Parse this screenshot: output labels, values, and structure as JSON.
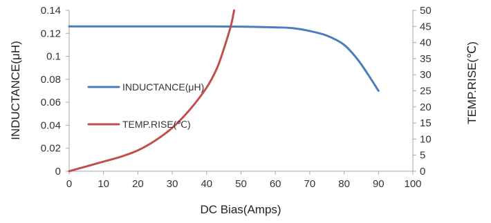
{
  "chart_data": {
    "type": "line",
    "xlabel": "DC Bias(Amps)",
    "ylabel_left": "INDUCTANCE(μH)",
    "ylabel_right": "TEMP.RISE(℃)",
    "xlim": [
      0,
      100
    ],
    "x_ticks": [
      "0",
      "10",
      "20",
      "30",
      "40",
      "50",
      "60",
      "70",
      "80",
      "90",
      "100"
    ],
    "ylim_left": [
      0,
      0.14
    ],
    "y_ticks_left": [
      "0",
      "0.02",
      "0.04",
      "0.06",
      "0.08",
      "0.1",
      "0.12",
      "0.14"
    ],
    "ylim_right": [
      0,
      50
    ],
    "y_ticks_right": [
      "0",
      "5",
      "10",
      "15",
      "20",
      "25",
      "30",
      "35",
      "40",
      "45",
      "50"
    ],
    "grid": false,
    "legend_position": "left-middle",
    "series": [
      {
        "name": "INDUCTANCE(μH)",
        "axis": "left",
        "color": "#4a7ebb",
        "x": [
          0,
          10,
          20,
          30,
          40,
          50,
          60,
          65,
          70,
          75,
          80,
          84,
          87,
          90
        ],
        "y": [
          0.126,
          0.126,
          0.126,
          0.126,
          0.126,
          0.1258,
          0.1252,
          0.1245,
          0.122,
          0.118,
          0.11,
          0.097,
          0.084,
          0.07
        ]
      },
      {
        "name": "TEMP.RISE(℃)",
        "axis": "right",
        "color": "#c0504d",
        "x": [
          0,
          5,
          10,
          15,
          20,
          25,
          30,
          35,
          40,
          43,
          45,
          47,
          48
        ],
        "y": [
          0,
          1.5,
          3,
          4.5,
          6.5,
          9.5,
          13.5,
          19,
          26,
          32,
          38,
          45,
          50
        ]
      }
    ]
  }
}
